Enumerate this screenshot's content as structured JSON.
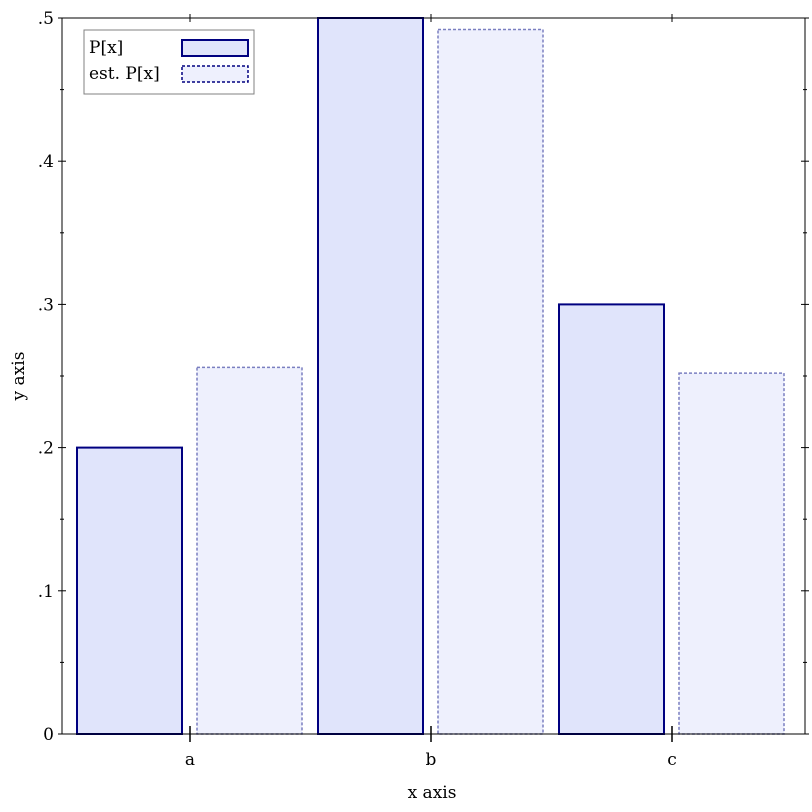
{
  "chart_data": {
    "type": "bar",
    "xlabel": "x axis",
    "ylabel": "y axis",
    "categories": [
      "a",
      "b",
      "c"
    ],
    "ylim": [
      0,
      0.5
    ],
    "yticks": [
      {
        "value": 0,
        "label": "0"
      },
      {
        "value": 0.1,
        "label": ".1"
      },
      {
        "value": 0.2,
        "label": ".2"
      },
      {
        "value": 0.3,
        "label": ".3"
      },
      {
        "value": 0.4,
        "label": ".4"
      },
      {
        "value": 0.5,
        "label": ".5"
      }
    ],
    "series": [
      {
        "name": "P[x]",
        "values": [
          0.2,
          0.5,
          0.3
        ],
        "fill": "#e0e4fb",
        "stroke": "#000080",
        "style": "solid"
      },
      {
        "name": "est. P[x]",
        "values": [
          0.256,
          0.492,
          0.252
        ],
        "fill": "#eef0fd",
        "stroke": "#7a7fc0",
        "style": "dashed"
      }
    ],
    "legend": "top-left",
    "grid": false
  }
}
